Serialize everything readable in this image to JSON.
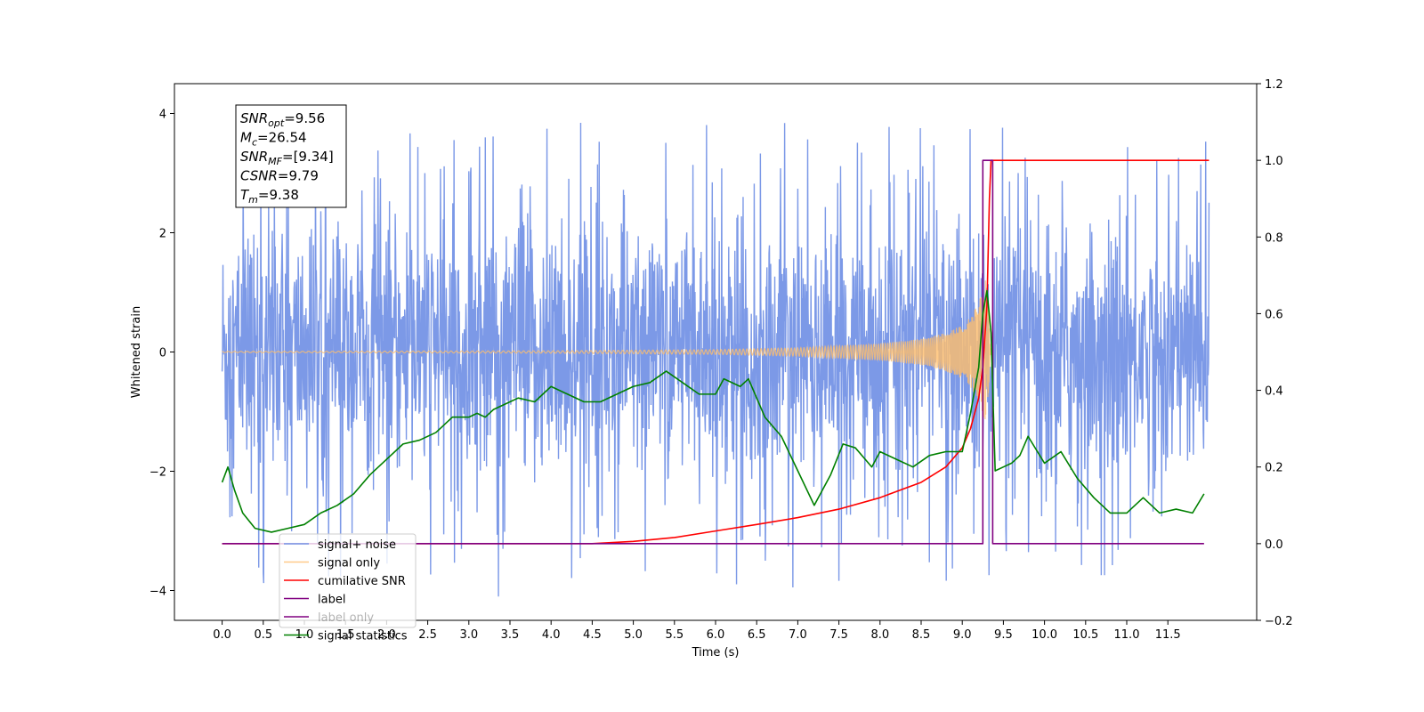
{
  "chart_data": {
    "type": "line",
    "title": "",
    "xlabel": "Time (s)",
    "ylabel": "Whitened strain",
    "xlim": [
      -0.58,
      12.58
    ],
    "ylim": [
      -4.5,
      4.5
    ],
    "y2lim": [
      -0.2,
      1.2
    ],
    "x_ticks": [
      "0.0",
      "0.5",
      "1.0",
      "1.5",
      "2.0",
      "2.5",
      "3.0",
      "3.5",
      "4.0",
      "4.5",
      "5.0",
      "5.5",
      "6.0",
      "6.5",
      "7.0",
      "7.5",
      "8.0",
      "8.5",
      "9.0",
      "9.5",
      "10.0",
      "10.5",
      "11.0",
      "11.5"
    ],
    "y_ticks": [
      "4",
      "2",
      "0",
      "−2",
      "−4"
    ],
    "y2_ticks": [
      "1.2",
      "1.0",
      "0.8",
      "0.6",
      "0.4",
      "0.2",
      "0.0",
      "−0.2"
    ],
    "grid": false,
    "legend_position": "lower-left",
    "stats": [
      {
        "sym": "SNR",
        "sub": "opt",
        "value": "=9.56"
      },
      {
        "sym": "M",
        "sub": "c",
        "value": "=26.54"
      },
      {
        "sym": "SNR",
        "sub": "MF",
        "value": "=[9.34]"
      },
      {
        "sym": "CSNR",
        "sub": "",
        "value": "=9.79"
      },
      {
        "sym": "T",
        "sub": "m",
        "value": "=9.38"
      }
    ],
    "series": [
      {
        "name": "signal+ noise",
        "axis": "left",
        "color": "#7594e6",
        "x_range": [
          0.0,
          12.0
        ],
        "band_low": -2.2,
        "band_high": 2.2,
        "max": 4.1,
        "min": -4.1
      },
      {
        "name": "signal only",
        "axis": "left",
        "color": "#ffbe6b",
        "x_range": [
          0.0,
          9.35
        ],
        "envelope": {
          "x": [
            0.0,
            4.0,
            6.0,
            7.0,
            8.0,
            8.5,
            8.8,
            9.0,
            9.1,
            9.2,
            9.25,
            9.3,
            9.35
          ],
          "amp": [
            0.01,
            0.02,
            0.04,
            0.07,
            0.14,
            0.22,
            0.32,
            0.45,
            0.58,
            0.85,
            1.05,
            1.3,
            0.0
          ]
        }
      },
      {
        "name": "cumilative SNR",
        "axis": "right",
        "color": "#ff0000",
        "x": [
          0.0,
          4.5,
          5.0,
          5.5,
          6.0,
          6.5,
          7.0,
          7.5,
          8.0,
          8.5,
          8.8,
          9.0,
          9.1,
          9.2,
          9.25,
          9.3,
          9.33,
          9.35,
          12.0
        ],
        "y": [
          0.0,
          0.0,
          0.006,
          0.016,
          0.033,
          0.05,
          0.068,
          0.09,
          0.12,
          0.16,
          0.2,
          0.25,
          0.3,
          0.38,
          0.46,
          0.62,
          0.9,
          1.0,
          1.0
        ]
      },
      {
        "name": "label",
        "axis": "right",
        "color": "#800080",
        "x": [
          0.0,
          9.25,
          9.25,
          9.37,
          9.37,
          11.94
        ],
        "y": [
          0.0,
          0.0,
          1.0,
          1.0,
          0.0,
          0.0
        ]
      },
      {
        "name": "label only",
        "axis": "right",
        "color": "#800080",
        "x": [],
        "y": []
      },
      {
        "name": "signal statistics",
        "axis": "right",
        "color": "#008000",
        "x": [
          0.0,
          0.07,
          0.15,
          0.25,
          0.4,
          0.6,
          0.8,
          1.0,
          1.2,
          1.4,
          1.6,
          1.8,
          2.0,
          2.2,
          2.4,
          2.6,
          2.8,
          3.0,
          3.1,
          3.2,
          3.3,
          3.5,
          3.6,
          3.8,
          4.0,
          4.2,
          4.4,
          4.6,
          4.8,
          5.0,
          5.2,
          5.4,
          5.6,
          5.8,
          6.0,
          6.1,
          6.3,
          6.4,
          6.6,
          6.8,
          7.0,
          7.2,
          7.4,
          7.55,
          7.7,
          7.9,
          8.0,
          8.2,
          8.4,
          8.6,
          8.8,
          9.0,
          9.1,
          9.2,
          9.25,
          9.3,
          9.35,
          9.4,
          9.5,
          9.6,
          9.7,
          9.8,
          10.0,
          10.2,
          10.4,
          10.6,
          10.8,
          11.0,
          11.2,
          11.4,
          11.6,
          11.8,
          11.94
        ],
        "y": [
          0.16,
          0.2,
          0.14,
          0.08,
          0.04,
          0.03,
          0.04,
          0.05,
          0.08,
          0.1,
          0.13,
          0.18,
          0.22,
          0.26,
          0.27,
          0.29,
          0.33,
          0.33,
          0.34,
          0.33,
          0.35,
          0.37,
          0.38,
          0.37,
          0.41,
          0.39,
          0.37,
          0.37,
          0.39,
          0.41,
          0.42,
          0.45,
          0.42,
          0.39,
          0.39,
          0.43,
          0.41,
          0.43,
          0.33,
          0.28,
          0.19,
          0.1,
          0.18,
          0.26,
          0.25,
          0.2,
          0.24,
          0.22,
          0.2,
          0.23,
          0.24,
          0.24,
          0.34,
          0.46,
          0.6,
          0.66,
          0.55,
          0.19,
          0.2,
          0.21,
          0.23,
          0.28,
          0.21,
          0.24,
          0.17,
          0.12,
          0.08,
          0.08,
          0.12,
          0.08,
          0.09,
          0.08,
          0.13
        ]
      }
    ]
  }
}
